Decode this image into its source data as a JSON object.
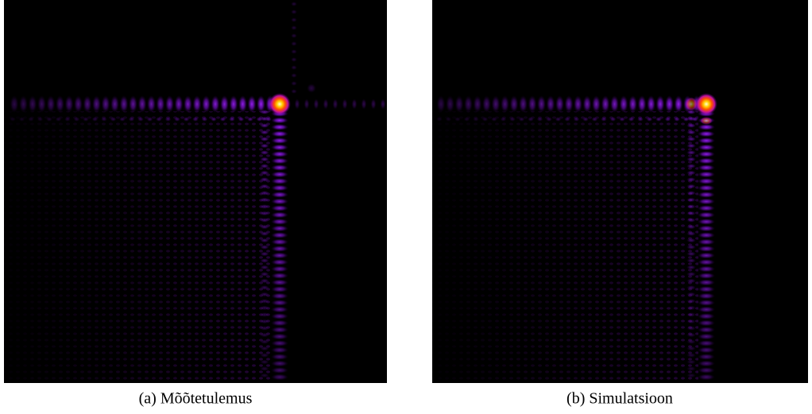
{
  "figure": {
    "panels": [
      {
        "caption": "(a) Mõõtetulemus"
      },
      {
        "caption": "(b) Simulatsioon"
      }
    ]
  }
}
